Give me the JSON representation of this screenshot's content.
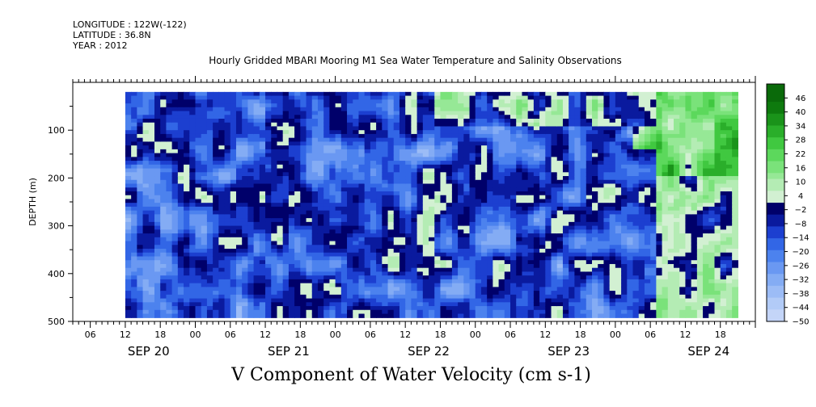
{
  "header": {
    "longitude": "LONGITUDE : 122W(-122)",
    "latitude": "LATITUDE : 36.8N",
    "year": "YEAR : 2012"
  },
  "colors": {
    "neg": [
      "#00006a",
      "#0a1a9e",
      "#1c3fd0",
      "#3266e6",
      "#4c82ee",
      "#6a98f2",
      "#84acf4",
      "#9cbcf6",
      "#b2cbf7",
      "#c4d5f8"
    ],
    "pos": [
      "#d2f0d2",
      "#b4ecb4",
      "#96e896",
      "#7ae27a",
      "#5cd85c",
      "#40c840",
      "#2aae2a",
      "#1a931a",
      "#0e7a0e",
      "#0a6a0a"
    ]
  },
  "chart_data": {
    "type": "heatmap",
    "title": "Hourly Gridded MBARI Mooring M1 Sea Water Temperature and Salinity Observations",
    "xlabel": "V Component of Water Velocity (cm s-1)",
    "ylabel": "DEPTH (m)",
    "y_reversed": true,
    "ylim": [
      0,
      500
    ],
    "y_ticks": [
      100,
      200,
      300,
      400,
      500
    ],
    "x_range_hours": [
      "2012-09-20 03:00",
      "2012-09-25 00:00"
    ],
    "data_range_hours": [
      "2012-09-20 12:00",
      "2012-09-24 21:00"
    ],
    "data_depth_range": [
      20,
      485
    ],
    "x_hour_ticks": [
      "06",
      "12",
      "18",
      "00",
      "06",
      "12",
      "18",
      "00",
      "06",
      "12",
      "18",
      "00",
      "06",
      "12",
      "18",
      "00",
      "06",
      "12",
      "18"
    ],
    "x_day_labels": [
      "SEP 20",
      "SEP 21",
      "SEP 22",
      "SEP 23",
      "SEP 24"
    ],
    "colorbar_levels": [
      46,
      40,
      34,
      28,
      22,
      16,
      10,
      4,
      -2,
      -8,
      -14,
      -20,
      -26,
      -32,
      -38,
      -44,
      -50
    ],
    "colorbar_range": [
      -50,
      52
    ]
  }
}
